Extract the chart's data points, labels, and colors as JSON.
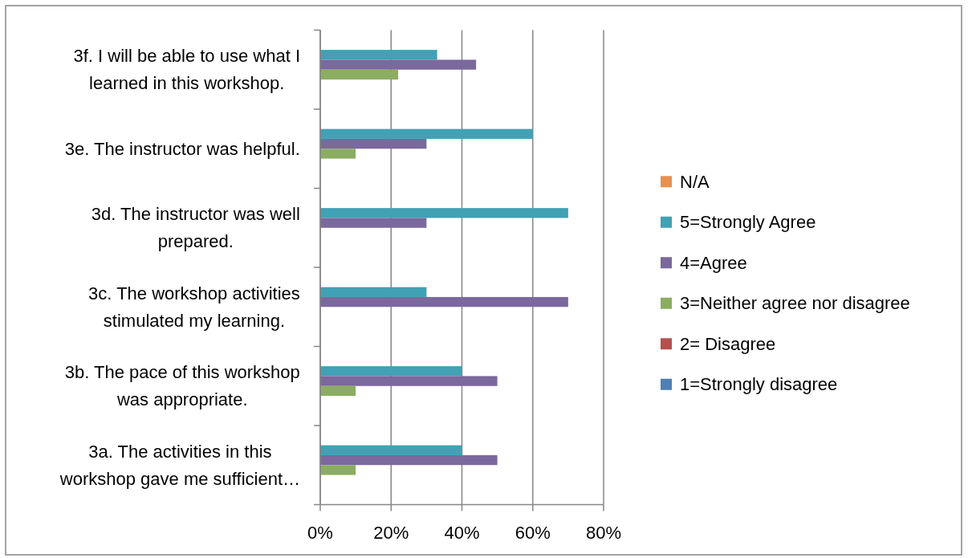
{
  "chart_data": {
    "type": "bar",
    "orientation": "horizontal",
    "categories": [
      "3f. I will be able to use what I learned in this workshop.",
      "3e. The instructor was helpful.",
      "3d. The instructor was well prepared.",
      "3c. The workshop activities stimulated my learning.",
      "3b. The pace of this workshop was appropriate.",
      "3a. The activities in this workshop gave me sufficient…"
    ],
    "series": [
      {
        "name": "N/A",
        "color": "#e8914f",
        "values": [
          0,
          0,
          0,
          0,
          0,
          0
        ]
      },
      {
        "name": "5=Strongly Agree",
        "color": "#41a1b5",
        "values": [
          33,
          60,
          70,
          30,
          40,
          40
        ]
      },
      {
        "name": "4=Agree",
        "color": "#7b689d",
        "values": [
          44,
          30,
          30,
          70,
          50,
          50
        ]
      },
      {
        "name": "3=Neither agree nor disagree",
        "color": "#8bad61",
        "values": [
          22,
          10,
          0,
          0,
          10,
          10
        ]
      },
      {
        "name": "2= Disagree",
        "color": "#b5504e",
        "values": [
          0,
          0,
          0,
          0,
          0,
          0
        ]
      },
      {
        "name": "1=Strongly disagree",
        "color": "#4f80b5",
        "values": [
          0,
          0,
          0,
          0,
          0,
          0
        ]
      }
    ],
    "xlim": [
      0,
      80
    ],
    "xticks": [
      {
        "value": 0,
        "label": "0%"
      },
      {
        "value": 20,
        "label": "20%"
      },
      {
        "value": 40,
        "label": "40%"
      },
      {
        "value": 60,
        "label": "60%"
      },
      {
        "value": 80,
        "label": "80%"
      }
    ],
    "grid": "x",
    "legend": "right"
  }
}
